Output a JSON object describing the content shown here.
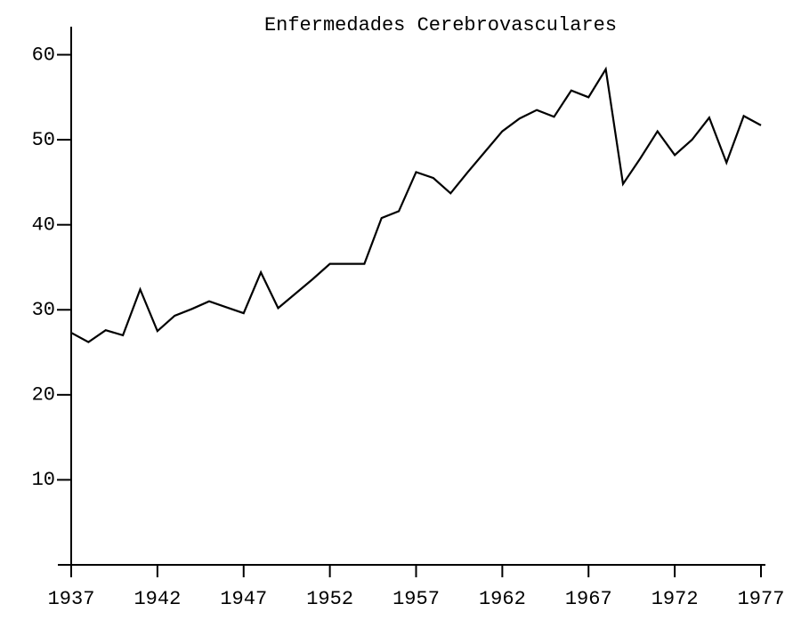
{
  "chart_data": {
    "type": "line",
    "title": "Enfermedades Cerebrovasculares",
    "x": [
      1937,
      1938,
      1939,
      1940,
      1941,
      1942,
      1943,
      1944,
      1945,
      1946,
      1947,
      1948,
      1949,
      1950,
      1951,
      1952,
      1953,
      1954,
      1955,
      1956,
      1957,
      1958,
      1959,
      1960,
      1961,
      1962,
      1963,
      1964,
      1965,
      1966,
      1967,
      1968,
      1969,
      1970,
      1971,
      1972,
      1973,
      1974,
      1975,
      1976,
      1977
    ],
    "values": [
      27.3,
      26.2,
      27.6,
      27.0,
      32.4,
      27.5,
      29.3,
      30.1,
      31.0,
      30.3,
      29.6,
      34.4,
      30.2,
      31.9,
      33.6,
      35.4,
      35.4,
      35.4,
      40.8,
      41.6,
      46.2,
      45.5,
      43.7,
      46.2,
      48.6,
      51.0,
      52.5,
      53.5,
      52.7,
      55.8,
      55.0,
      58.3,
      44.8,
      47.8,
      51.0,
      48.2,
      50.0,
      52.6,
      47.3,
      52.8,
      51.7
    ],
    "color": "#000000",
    "xlim": [
      1937,
      1977
    ],
    "xticks": [
      1937,
      1942,
      1947,
      1952,
      1957,
      1962,
      1967,
      1972,
      1977
    ],
    "ylim": [
      0,
      63.3
    ],
    "yticks": [
      10,
      20,
      30,
      40,
      50,
      60
    ],
    "grid": false
  }
}
